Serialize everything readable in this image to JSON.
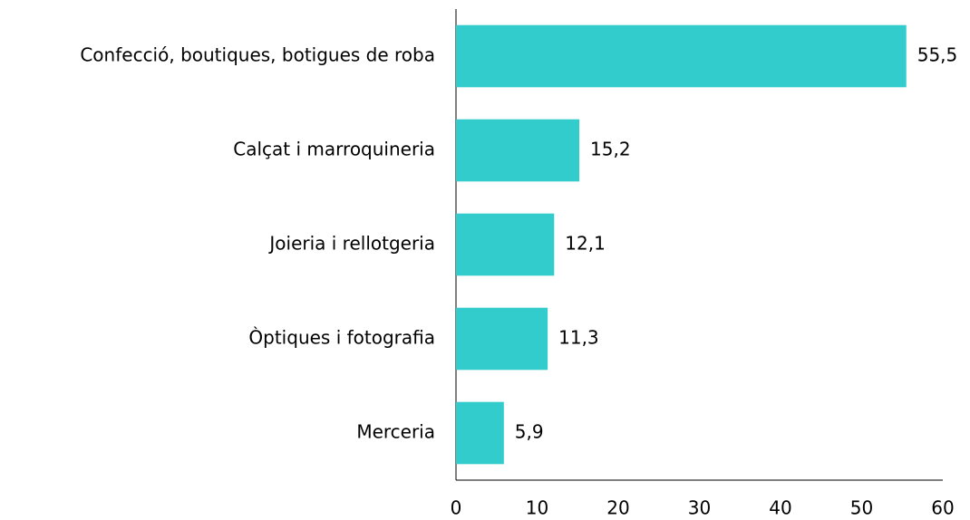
{
  "chart_data": {
    "type": "hbar",
    "categories": [
      "Confecció, boutiques, botigues de roba",
      "Calçat i marroquineria",
      "Joieria i rellotgeria",
      "Òptiques i fotografia",
      "Merceria"
    ],
    "values": [
      55.5,
      15.2,
      12.1,
      11.3,
      5.9
    ],
    "value_labels": [
      "55,5",
      "15,2",
      "12,1",
      "11,3",
      "5,9"
    ],
    "color": "#33cccc",
    "xlim": [
      0,
      60
    ],
    "xticks": [
      0,
      10,
      20,
      30,
      40,
      50,
      60
    ],
    "grid": false
  }
}
